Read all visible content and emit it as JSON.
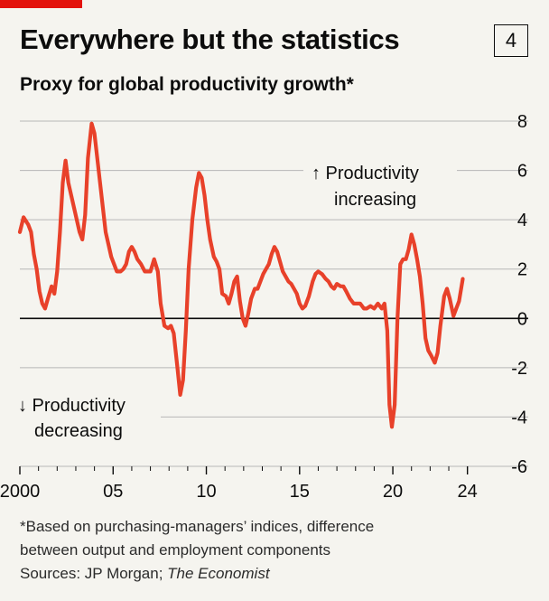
{
  "header": {
    "title": "Everywhere but the statistics",
    "chart_number": "4",
    "subtitle": "Proxy for global productivity growth*"
  },
  "notes": {
    "footnote_line1": "*Based on purchasing-managers’ indices, difference",
    "footnote_line2": "between output and employment components",
    "sources_prefix": "Sources: JP Morgan; ",
    "sources_italic": "The Economist"
  },
  "colors": {
    "line": "#e8412a",
    "accent": "#e3120b",
    "grid": "#b7b7b7",
    "zero_line": "#0c0c0c",
    "text": "#0c0c0c",
    "background": "#f5f4ef"
  },
  "chart_data": {
    "type": "line",
    "title": "Everywhere but the statistics",
    "subtitle": "Proxy for global productivity growth*",
    "xlabel": "",
    "ylabel": "",
    "xlim": [
      2000,
      2024.5
    ],
    "ylim": [
      -6,
      8
    ],
    "x_ticks": [
      {
        "value": 2000,
        "label": "2000"
      },
      {
        "value": 2005,
        "label": "05"
      },
      {
        "value": 2010,
        "label": "10"
      },
      {
        "value": 2015,
        "label": "15"
      },
      {
        "value": 2020,
        "label": "20"
      },
      {
        "value": 2024,
        "label": "24"
      }
    ],
    "y_ticks": [
      {
        "value": 8,
        "label": "8"
      },
      {
        "value": 6,
        "label": "6"
      },
      {
        "value": 4,
        "label": "4"
      },
      {
        "value": 2,
        "label": "2"
      },
      {
        "value": 0,
        "label": "0"
      },
      {
        "value": -2,
        "label": "-2"
      },
      {
        "value": -4,
        "label": "-4"
      },
      {
        "value": -6,
        "label": "-6"
      }
    ],
    "grid": "horizontal",
    "annotations": [
      {
        "line1": "↑ Productivity",
        "line2": "increasing"
      },
      {
        "line1": "↓ Productivity",
        "line2": "decreasing"
      }
    ],
    "series": [
      {
        "values": [
          [
            2000.0,
            3.5
          ],
          [
            2000.2,
            4.1
          ],
          [
            2000.45,
            3.8
          ],
          [
            2000.6,
            3.5
          ],
          [
            2000.75,
            2.6
          ],
          [
            2000.9,
            2.0
          ],
          [
            2001.05,
            1.1
          ],
          [
            2001.2,
            0.6
          ],
          [
            2001.35,
            0.4
          ],
          [
            2001.5,
            0.8
          ],
          [
            2001.7,
            1.3
          ],
          [
            2001.85,
            1.0
          ],
          [
            2002.0,
            1.9
          ],
          [
            2002.15,
            3.5
          ],
          [
            2002.3,
            5.5
          ],
          [
            2002.45,
            6.4
          ],
          [
            2002.6,
            5.5
          ],
          [
            2002.75,
            5.0
          ],
          [
            2002.9,
            4.5
          ],
          [
            2003.05,
            4.0
          ],
          [
            2003.2,
            3.5
          ],
          [
            2003.35,
            3.2
          ],
          [
            2003.5,
            4.2
          ],
          [
            2003.65,
            6.5
          ],
          [
            2003.85,
            7.9
          ],
          [
            2004.0,
            7.5
          ],
          [
            2004.15,
            6.5
          ],
          [
            2004.3,
            5.5
          ],
          [
            2004.45,
            4.5
          ],
          [
            2004.6,
            3.5
          ],
          [
            2004.75,
            3.0
          ],
          [
            2004.9,
            2.5
          ],
          [
            2005.05,
            2.2
          ],
          [
            2005.2,
            1.9
          ],
          [
            2005.4,
            1.9
          ],
          [
            2005.55,
            2.0
          ],
          [
            2005.7,
            2.2
          ],
          [
            2005.85,
            2.7
          ],
          [
            2006.0,
            2.9
          ],
          [
            2006.15,
            2.7
          ],
          [
            2006.3,
            2.4
          ],
          [
            2006.5,
            2.2
          ],
          [
            2006.7,
            1.9
          ],
          [
            2006.85,
            1.9
          ],
          [
            2007.0,
            1.9
          ],
          [
            2007.2,
            2.4
          ],
          [
            2007.4,
            1.9
          ],
          [
            2007.55,
            0.6
          ],
          [
            2007.75,
            -0.3
          ],
          [
            2007.95,
            -0.4
          ],
          [
            2008.1,
            -0.3
          ],
          [
            2008.25,
            -0.6
          ],
          [
            2008.45,
            -2.0
          ],
          [
            2008.6,
            -3.1
          ],
          [
            2008.75,
            -2.5
          ],
          [
            2008.9,
            -0.5
          ],
          [
            2009.05,
            2.0
          ],
          [
            2009.25,
            4.0
          ],
          [
            2009.45,
            5.3
          ],
          [
            2009.6,
            5.9
          ],
          [
            2009.75,
            5.7
          ],
          [
            2009.9,
            5.0
          ],
          [
            2010.05,
            4.0
          ],
          [
            2010.2,
            3.2
          ],
          [
            2010.4,
            2.5
          ],
          [
            2010.55,
            2.3
          ],
          [
            2010.7,
            2.0
          ],
          [
            2010.85,
            1.0
          ],
          [
            2011.05,
            0.9
          ],
          [
            2011.2,
            0.6
          ],
          [
            2011.35,
            1.0
          ],
          [
            2011.5,
            1.5
          ],
          [
            2011.65,
            1.7
          ],
          [
            2011.8,
            0.7
          ],
          [
            2011.95,
            0.0
          ],
          [
            2012.1,
            -0.3
          ],
          [
            2012.25,
            0.2
          ],
          [
            2012.4,
            0.8
          ],
          [
            2012.6,
            1.2
          ],
          [
            2012.75,
            1.2
          ],
          [
            2012.9,
            1.5
          ],
          [
            2013.05,
            1.8
          ],
          [
            2013.2,
            2.0
          ],
          [
            2013.35,
            2.2
          ],
          [
            2013.5,
            2.6
          ],
          [
            2013.65,
            2.9
          ],
          [
            2013.8,
            2.7
          ],
          [
            2013.95,
            2.3
          ],
          [
            2014.1,
            1.9
          ],
          [
            2014.25,
            1.7
          ],
          [
            2014.4,
            1.5
          ],
          [
            2014.55,
            1.4
          ],
          [
            2014.7,
            1.2
          ],
          [
            2014.85,
            1.0
          ],
          [
            2015.0,
            0.6
          ],
          [
            2015.15,
            0.4
          ],
          [
            2015.3,
            0.5
          ],
          [
            2015.5,
            0.9
          ],
          [
            2015.7,
            1.5
          ],
          [
            2015.85,
            1.8
          ],
          [
            2016.0,
            1.9
          ],
          [
            2016.2,
            1.8
          ],
          [
            2016.4,
            1.6
          ],
          [
            2016.55,
            1.5
          ],
          [
            2016.7,
            1.3
          ],
          [
            2016.85,
            1.2
          ],
          [
            2017.0,
            1.4
          ],
          [
            2017.2,
            1.3
          ],
          [
            2017.35,
            1.3
          ],
          [
            2017.5,
            1.1
          ],
          [
            2017.7,
            0.8
          ],
          [
            2017.9,
            0.6
          ],
          [
            2018.1,
            0.6
          ],
          [
            2018.25,
            0.6
          ],
          [
            2018.45,
            0.4
          ],
          [
            2018.6,
            0.4
          ],
          [
            2018.8,
            0.5
          ],
          [
            2019.0,
            0.4
          ],
          [
            2019.2,
            0.6
          ],
          [
            2019.4,
            0.4
          ],
          [
            2019.55,
            0.6
          ],
          [
            2019.7,
            -0.5
          ],
          [
            2019.82,
            -3.5
          ],
          [
            2019.95,
            -4.4
          ],
          [
            2020.1,
            -3.5
          ],
          [
            2020.25,
            0.0
          ],
          [
            2020.4,
            2.2
          ],
          [
            2020.55,
            2.4
          ],
          [
            2020.7,
            2.4
          ],
          [
            2020.85,
            2.8
          ],
          [
            2021.0,
            3.4
          ],
          [
            2021.15,
            3.0
          ],
          [
            2021.3,
            2.4
          ],
          [
            2021.45,
            1.7
          ],
          [
            2021.6,
            0.6
          ],
          [
            2021.75,
            -0.8
          ],
          [
            2021.9,
            -1.3
          ],
          [
            2022.05,
            -1.5
          ],
          [
            2022.25,
            -1.8
          ],
          [
            2022.4,
            -1.4
          ],
          [
            2022.55,
            -0.3
          ],
          [
            2022.75,
            0.9
          ],
          [
            2022.9,
            1.2
          ],
          [
            2023.05,
            0.8
          ],
          [
            2023.25,
            0.1
          ],
          [
            2023.4,
            0.4
          ],
          [
            2023.55,
            0.7
          ],
          [
            2023.75,
            1.6
          ]
        ]
      }
    ]
  }
}
